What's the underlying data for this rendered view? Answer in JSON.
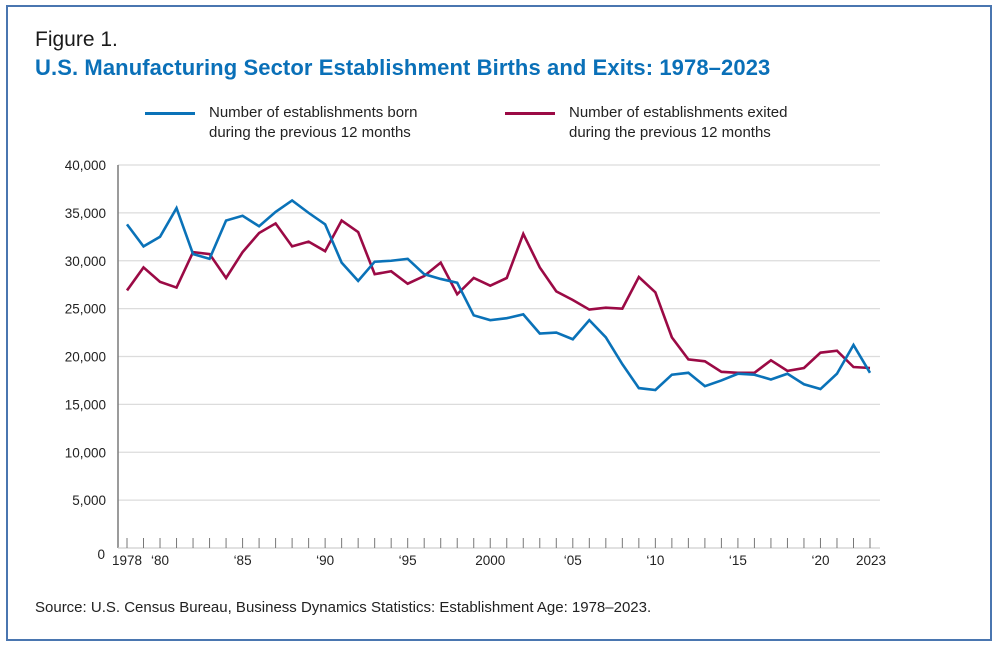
{
  "figure": {
    "label": "Figure 1.",
    "title": "U.S. Manufacturing Sector Establishment Births and Exits: 1978–2023",
    "source": "Source: U.S. Census Bureau, Business Dynamics Statistics: Establishment Age: 1978–2023."
  },
  "legend": [
    {
      "line1": "Number of establishments born",
      "line2": "during the previous 12 months",
      "color": "#0a72b8"
    },
    {
      "line1": "Number of establishments exited",
      "line2": "during the previous 12 months",
      "color": "#9b0a45"
    }
  ],
  "chart_data": {
    "type": "line",
    "title": "U.S. Manufacturing Sector Establishment Births and Exits: 1978–2023",
    "xlabel": "",
    "ylabel": "",
    "ylim": [
      0,
      40000
    ],
    "xlim": [
      1978,
      2023
    ],
    "grid": "horizontal",
    "legend_position": "top",
    "y_ticks": [
      0,
      5000,
      10000,
      15000,
      20000,
      25000,
      30000,
      35000,
      40000
    ],
    "y_tick_labels": [
      "0",
      "5,000",
      "10,000",
      "15,000",
      "20,000",
      "25,000",
      "30,000",
      "35,000",
      "40,000"
    ],
    "x_tick_labels": [
      {
        "year": 1978,
        "label": "1978"
      },
      {
        "year": 1980,
        "label": "‘80"
      },
      {
        "year": 1985,
        "label": "‘85"
      },
      {
        "year": 1990,
        "label": "‘90"
      },
      {
        "year": 1995,
        "label": "‘95"
      },
      {
        "year": 2000,
        "label": "2000"
      },
      {
        "year": 2005,
        "label": "‘05"
      },
      {
        "year": 2010,
        "label": "‘10"
      },
      {
        "year": 2015,
        "label": "‘15"
      },
      {
        "year": 2020,
        "label": "‘20"
      },
      {
        "year": 2023,
        "label": "2023"
      }
    ],
    "x": [
      1978,
      1979,
      1980,
      1981,
      1982,
      1983,
      1984,
      1985,
      1986,
      1987,
      1988,
      1989,
      1990,
      1991,
      1992,
      1993,
      1994,
      1995,
      1996,
      1997,
      1998,
      1999,
      2000,
      2001,
      2002,
      2003,
      2004,
      2005,
      2006,
      2007,
      2008,
      2009,
      2010,
      2011,
      2012,
      2013,
      2014,
      2015,
      2016,
      2017,
      2018,
      2019,
      2020,
      2021,
      2022,
      2023
    ],
    "series": [
      {
        "name": "Number of establishments born during the previous 12 months",
        "color": "#0a72b8",
        "values": [
          33800,
          31500,
          32500,
          35500,
          30700,
          30200,
          34200,
          34700,
          33600,
          35100,
          36300,
          35000,
          33800,
          29800,
          27900,
          29900,
          30000,
          30200,
          28600,
          28100,
          27700,
          24300,
          23800,
          24000,
          24400,
          22400,
          22500,
          21800,
          23800,
          22000,
          19200,
          16700,
          16500,
          18100,
          18300,
          16900,
          17500,
          18200,
          18100,
          17600,
          18200,
          17100,
          16600,
          18200,
          21200,
          18300
        ]
      },
      {
        "name": "Number of establishments exited during the previous 12 months",
        "color": "#9b0a45",
        "values": [
          26900,
          29300,
          27800,
          27200,
          30900,
          30700,
          28200,
          30900,
          32900,
          33900,
          31500,
          32000,
          31000,
          34200,
          33000,
          28600,
          28900,
          27600,
          28400,
          29800,
          26500,
          28200,
          27400,
          28200,
          32800,
          29300,
          26800,
          25900,
          24900,
          25100,
          25000,
          28300,
          26700,
          22000,
          19700,
          19500,
          18400,
          18300,
          18300,
          19600,
          18500,
          18800,
          20400,
          20600,
          18900,
          18800
        ]
      }
    ]
  }
}
